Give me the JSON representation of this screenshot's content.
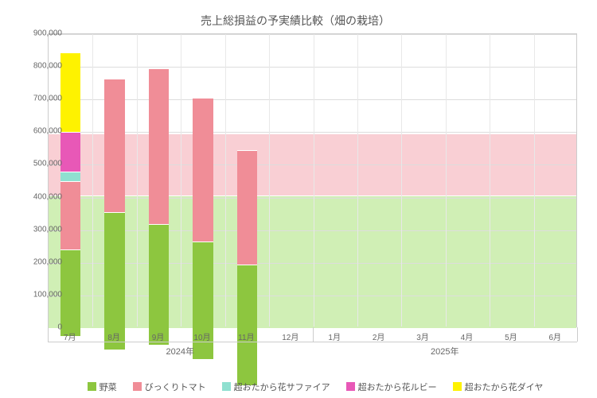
{
  "chart": {
    "type": "stacked-bar-with-bands",
    "title": "売上総損益の予実績比較（畑の栽培）",
    "background_color": "#ffffff",
    "grid_color": "#dddddd",
    "border_color": "#cccccc",
    "y": {
      "min": 0,
      "max": 900000,
      "step": 100000,
      "labels": [
        "0",
        "100,000",
        "200,000",
        "300,000",
        "400,000",
        "500,000",
        "600,000",
        "700,000",
        "800,000",
        "900,000"
      ],
      "fontsize": 10,
      "label_color": "#666666"
    },
    "x": {
      "categories": [
        "7月",
        "8月",
        "9月",
        "10月",
        "11月",
        "12月",
        "1月",
        "2月",
        "3月",
        "4月",
        "5月",
        "6月"
      ],
      "fontsize": 10,
      "label_color": "#666666",
      "years": [
        {
          "label": "2024年",
          "from": 0,
          "to": 6
        },
        {
          "label": "2025年",
          "from": 6,
          "to": 12
        }
      ]
    },
    "bands": [
      {
        "color": "#d0efb5",
        "from": 0,
        "to": 405000
      },
      {
        "color": "#f9cfd4",
        "from": 405000,
        "to": 593000
      }
    ],
    "series": [
      {
        "name": "野菜",
        "color": "#8dc63f"
      },
      {
        "name": "びっくりトマト",
        "color": "#f08d97"
      },
      {
        "name": "超おたから花サファイア",
        "color": "#8fe0d0"
      },
      {
        "name": "超おたから花ルビー",
        "color": "#e858b7"
      },
      {
        "name": "超おたから花ダイヤ",
        "color": "#fef200"
      }
    ],
    "bars": [
      {
        "cat": 0,
        "values": [
          265000,
          210000,
          30000,
          120000,
          245000
        ]
      },
      {
        "cat": 1,
        "values": [
          420000,
          410000,
          0,
          0,
          0
        ]
      },
      {
        "cat": 2,
        "values": [
          370000,
          475000,
          0,
          0,
          0
        ]
      },
      {
        "cat": 3,
        "values": [
          360000,
          440000,
          0,
          0,
          0
        ]
      },
      {
        "cat": 4,
        "values": [
          370000,
          350000,
          0,
          0,
          0
        ]
      }
    ],
    "bar_width_ratio": 0.46,
    "bar_border_color": "#ffffff",
    "title_fontsize": 14,
    "title_color": "#555555",
    "legend_fontsize": 11
  }
}
